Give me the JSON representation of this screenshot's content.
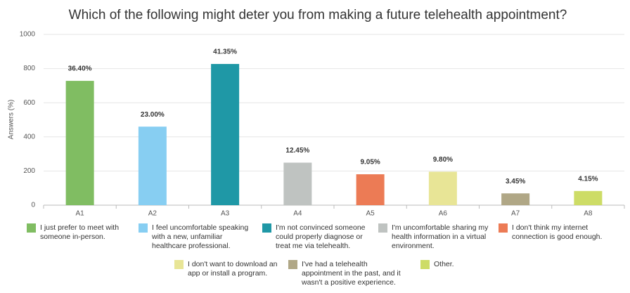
{
  "chart_data": {
    "type": "bar",
    "title": "Which of the following might deter you from making a future telehealth appointment?",
    "y_label": "Answers (%)",
    "categories": [
      "A1",
      "A2",
      "A3",
      "A4",
      "A5",
      "A6",
      "A7",
      "A8"
    ],
    "values": [
      728,
      460,
      827,
      249,
      181,
      196,
      69,
      83
    ],
    "bar_labels": [
      "36.40%",
      "23.00%",
      "41.35%",
      "12.45%",
      "9.05%",
      "9.80%",
      "3.45%",
      "4.15%"
    ],
    "colors": [
      "#80bd62",
      "#87cef2",
      "#1f98a6",
      "#bfc3c1",
      "#ec7b55",
      "#e8e596",
      "#b0a786",
      "#cddc66"
    ],
    "legend_labels": [
      "I just prefer to meet with someone in-person.",
      "I feel uncomfortable speaking with a new, unfamiliar healthcare professional.",
      "I'm not convinced someone could properly diagnose or treat me via telehealth.",
      "I'm uncomfortable sharing my health information in a virtual environment.",
      "I don't think my internet connection is good enough.",
      "I don't want to download an app or install a program.",
      "I've had a telehealth appointment in the past, and it wasn't a positive experience.",
      "Other."
    ],
    "ylim": [
      0,
      1000
    ],
    "yticks": [
      0,
      200,
      400,
      600,
      800,
      1000
    ],
    "grid": true
  }
}
